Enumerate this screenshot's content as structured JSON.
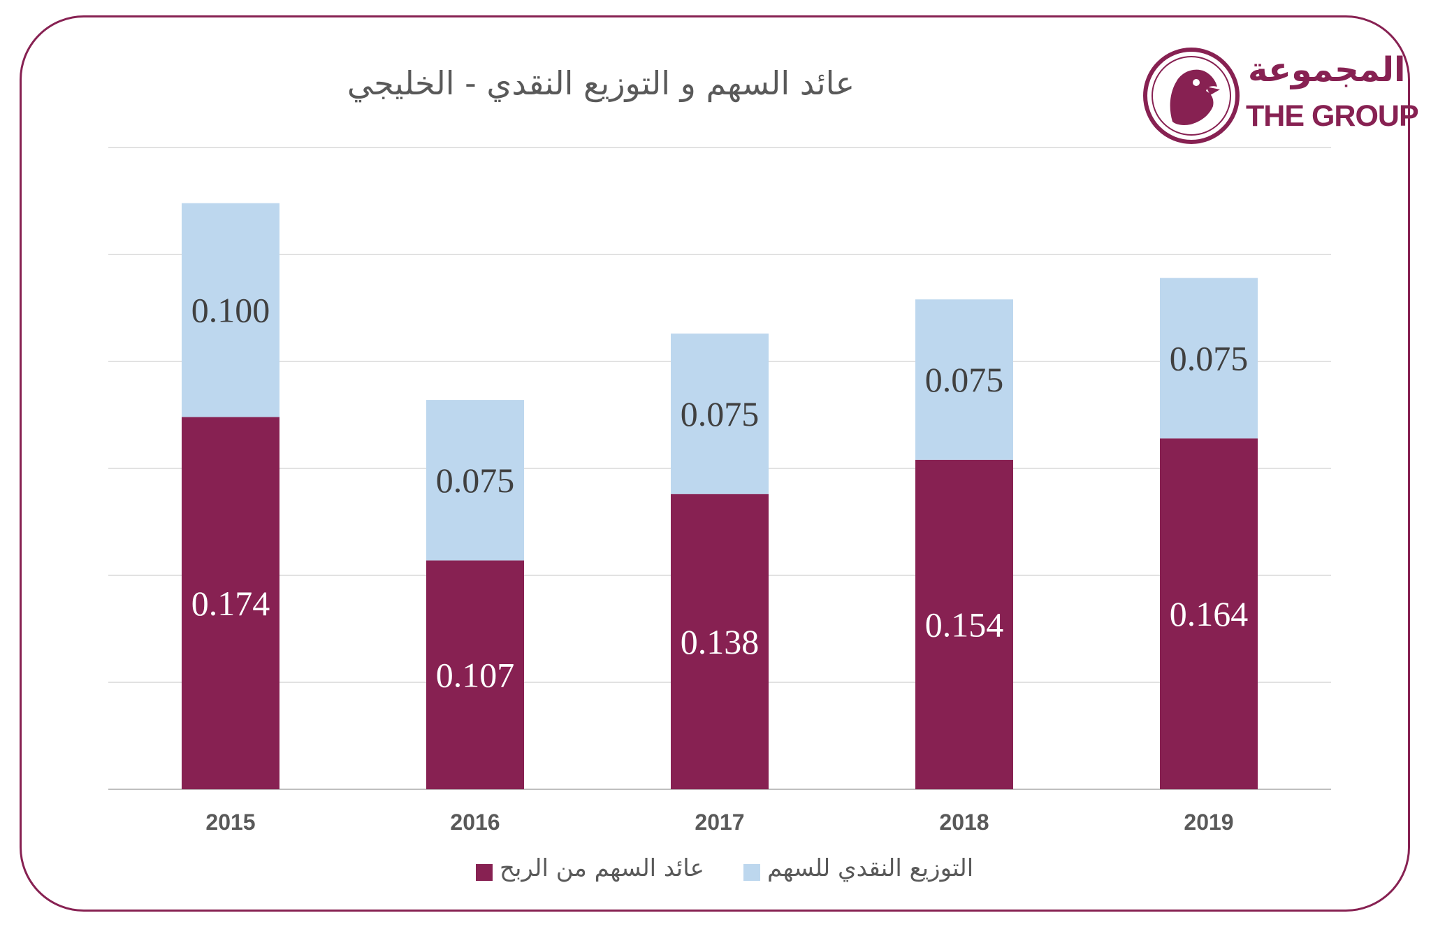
{
  "logo": {
    "arabic": "المجموعة",
    "english": "THE GROUP"
  },
  "colors": {
    "frame": "#872152",
    "eps": "#872152",
    "dividend": "#BDD7EE",
    "grid": "#D9D9D9",
    "text": "#595959"
  },
  "chart_data": {
    "type": "bar",
    "stacked": true,
    "title": "عائد السهم و التوزيع النقدي - الخليجي",
    "categories": [
      "2015",
      "2016",
      "2017",
      "2018",
      "2019"
    ],
    "series": [
      {
        "name": "عائد السهم من الربح",
        "values": [
          0.174,
          0.107,
          0.138,
          0.154,
          0.164
        ],
        "color": "#872152",
        "label_color": "#ffffff"
      },
      {
        "name": "التوزيع النقدي للسهم",
        "values": [
          0.1,
          0.075,
          0.075,
          0.075,
          0.075
        ],
        "color": "#BDD7EE",
        "label_color": "#404040"
      }
    ],
    "labels": [
      [
        "0.174",
        "0.107",
        "0.138",
        "0.154",
        "0.164"
      ],
      [
        "0.100",
        "0.075",
        "0.075",
        "0.075",
        "0.075"
      ]
    ],
    "ylim": [
      0,
      0.3
    ],
    "grid": true,
    "legend_position": "bottom"
  }
}
